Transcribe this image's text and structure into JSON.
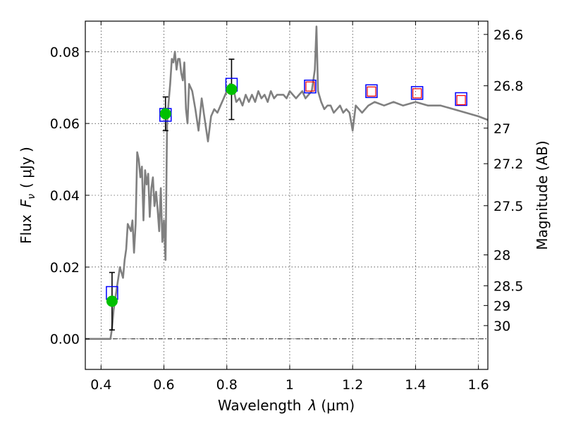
{
  "chart_data": {
    "type": "line",
    "title": "",
    "xlabel": "Wavelength",
    "xlabel_symbol": "λ",
    "xlabel_unit": "(μm)",
    "ylabel": "Flux",
    "ylabel_symbol": "F",
    "ylabel_subscript": "ν",
    "ylabel_unit": "( μJy )",
    "y2label": "Magnitude (AB)",
    "xlim": [
      0.35,
      1.63
    ],
    "ylim": [
      -0.0085,
      0.0885
    ],
    "grid": true,
    "x_ticks": [
      0.4,
      0.6,
      0.8,
      1.0,
      1.2,
      1.4,
      1.6
    ],
    "x_tick_labels": [
      "0.4",
      "0.6",
      "0.8",
      "1",
      "1.2",
      "1.4",
      "1.6"
    ],
    "y_ticks": [
      0.0,
      0.02,
      0.04,
      0.06,
      0.08
    ],
    "y_tick_labels": [
      "0.00",
      "0.02",
      "0.04",
      "0.06",
      "0.08"
    ],
    "mag_ticks": [
      {
        "label": "26.6",
        "flux": 0.0848
      },
      {
        "label": "26.8",
        "flux": 0.0705
      },
      {
        "label": "27",
        "flux": 0.0587
      },
      {
        "label": "27.2",
        "flux": 0.0488
      },
      {
        "label": "27.5",
        "flux": 0.0371
      },
      {
        "label": "28",
        "flux": 0.0234
      },
      {
        "label": "28.5",
        "flux": 0.0148
      },
      {
        "label": "29",
        "flux": 0.0093
      },
      {
        "label": "30",
        "flux": 0.0037
      }
    ],
    "zero_line": 0.0,
    "sed_color": "#808080",
    "sed_x": [
      0.35,
      0.43,
      0.435,
      0.44,
      0.45,
      0.46,
      0.47,
      0.475,
      0.48,
      0.485,
      0.49,
      0.495,
      0.5,
      0.505,
      0.51,
      0.515,
      0.52,
      0.525,
      0.53,
      0.535,
      0.54,
      0.545,
      0.55,
      0.555,
      0.56,
      0.565,
      0.57,
      0.575,
      0.58,
      0.585,
      0.59,
      0.595,
      0.6,
      0.605,
      0.61,
      0.615,
      0.62,
      0.625,
      0.63,
      0.635,
      0.64,
      0.645,
      0.65,
      0.655,
      0.66,
      0.665,
      0.67,
      0.675,
      0.68,
      0.69,
      0.7,
      0.71,
      0.72,
      0.73,
      0.74,
      0.75,
      0.76,
      0.77,
      0.78,
      0.79,
      0.8,
      0.81,
      0.82,
      0.83,
      0.84,
      0.85,
      0.86,
      0.87,
      0.88,
      0.89,
      0.9,
      0.91,
      0.92,
      0.93,
      0.94,
      0.95,
      0.96,
      0.97,
      0.98,
      0.99,
      1.0,
      1.01,
      1.02,
      1.03,
      1.04,
      1.05,
      1.06,
      1.07,
      1.08,
      1.085,
      1.09,
      1.1,
      1.11,
      1.12,
      1.13,
      1.14,
      1.15,
      1.16,
      1.17,
      1.18,
      1.19,
      1.2,
      1.21,
      1.22,
      1.23,
      1.24,
      1.25,
      1.27,
      1.3,
      1.33,
      1.36,
      1.4,
      1.44,
      1.48,
      1.52,
      1.56,
      1.6,
      1.63
    ],
    "sed_y": [
      0.0,
      0.0,
      0.003,
      0.008,
      0.014,
      0.02,
      0.017,
      0.022,
      0.025,
      0.032,
      0.031,
      0.03,
      0.033,
      0.024,
      0.032,
      0.052,
      0.05,
      0.045,
      0.048,
      0.033,
      0.047,
      0.043,
      0.046,
      0.034,
      0.042,
      0.045,
      0.037,
      0.041,
      0.036,
      0.03,
      0.042,
      0.027,
      0.033,
      0.022,
      0.06,
      0.066,
      0.071,
      0.078,
      0.077,
      0.08,
      0.075,
      0.078,
      0.078,
      0.074,
      0.072,
      0.077,
      0.064,
      0.06,
      0.071,
      0.069,
      0.064,
      0.058,
      0.067,
      0.061,
      0.055,
      0.062,
      0.064,
      0.063,
      0.065,
      0.067,
      0.069,
      0.071,
      0.07,
      0.066,
      0.067,
      0.065,
      0.068,
      0.066,
      0.068,
      0.066,
      0.069,
      0.067,
      0.068,
      0.066,
      0.069,
      0.067,
      0.068,
      0.068,
      0.068,
      0.067,
      0.069,
      0.068,
      0.067,
      0.068,
      0.069,
      0.067,
      0.068,
      0.069,
      0.075,
      0.087,
      0.069,
      0.066,
      0.064,
      0.065,
      0.065,
      0.063,
      0.064,
      0.065,
      0.063,
      0.064,
      0.063,
      0.058,
      0.065,
      0.064,
      0.063,
      0.064,
      0.065,
      0.066,
      0.065,
      0.066,
      0.065,
      0.066,
      0.065,
      0.065,
      0.064,
      0.063,
      0.062,
      0.061
    ],
    "observed": {
      "marker": "circle",
      "color": "#00c000",
      "x": [
        0.435,
        0.605,
        0.815
      ],
      "y": [
        0.0105,
        0.0627,
        0.0695
      ],
      "yerr": [
        0.008,
        0.0047,
        0.0084
      ]
    },
    "model_blue": {
      "marker": "square-open",
      "color": "#0000ff",
      "x": [
        0.435,
        0.605,
        0.815,
        1.065,
        1.26,
        1.405,
        1.545
      ],
      "y": [
        0.0128,
        0.0624,
        0.0708,
        0.0703,
        0.069,
        0.0685,
        0.0668
      ]
    },
    "model_red": {
      "marker": "square-open",
      "color": "#ff0000",
      "x": [
        1.065,
        1.26,
        1.405,
        1.545
      ],
      "y": [
        0.0703,
        0.0689,
        0.0684,
        0.0665
      ]
    }
  }
}
